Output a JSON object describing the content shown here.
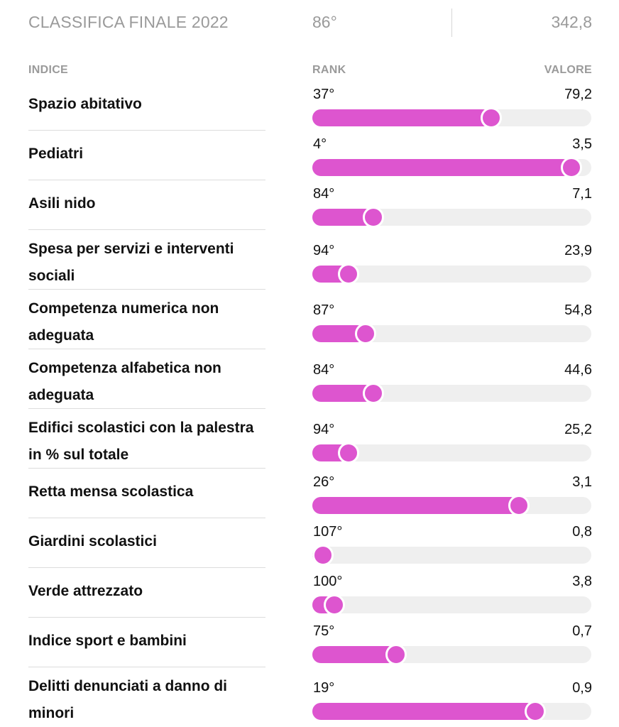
{
  "header": {
    "title": "CLASSIFICA FINALE 2022",
    "rank": "86°",
    "value": "342,8"
  },
  "columns": {
    "index": "INDICE",
    "rank": "RANK",
    "value": "VALORE"
  },
  "colors": {
    "bar_fill": "#dd55cf",
    "bar_track": "#efefef",
    "text": "#111111",
    "muted": "#9a9a9a"
  },
  "chart_data": {
    "type": "bar",
    "categories": [
      "Spazio abitativo",
      "Pediatri",
      "Asili nido",
      "Spesa per servizi e interventi sociali",
      "Competenza numerica non adeguata",
      "Competenza alfabetica non adeguata",
      "Edifici scolastici con la palestra in % sul totale",
      "Retta mensa scolastica",
      "Giardini scolastici",
      "Verde attrezzato",
      "Indice sport e bambini",
      "Delitti denunciati a danno di minori"
    ],
    "ranks": [
      "37°",
      "4°",
      "84°",
      "94°",
      "87°",
      "84°",
      "94°",
      "26°",
      "107°",
      "100°",
      "75°",
      "19°"
    ],
    "values": [
      "79,2",
      "3,5",
      "7,1",
      "23,9",
      "54,8",
      "44,6",
      "25,2",
      "3,1",
      "0,8",
      "3,8",
      "0,7",
      "0,9"
    ],
    "bar_fraction": [
      0.64,
      0.93,
      0.22,
      0.13,
      0.19,
      0.22,
      0.13,
      0.74,
      0.03,
      0.08,
      0.3,
      0.8
    ],
    "title": "CLASSIFICA FINALE 2022"
  }
}
